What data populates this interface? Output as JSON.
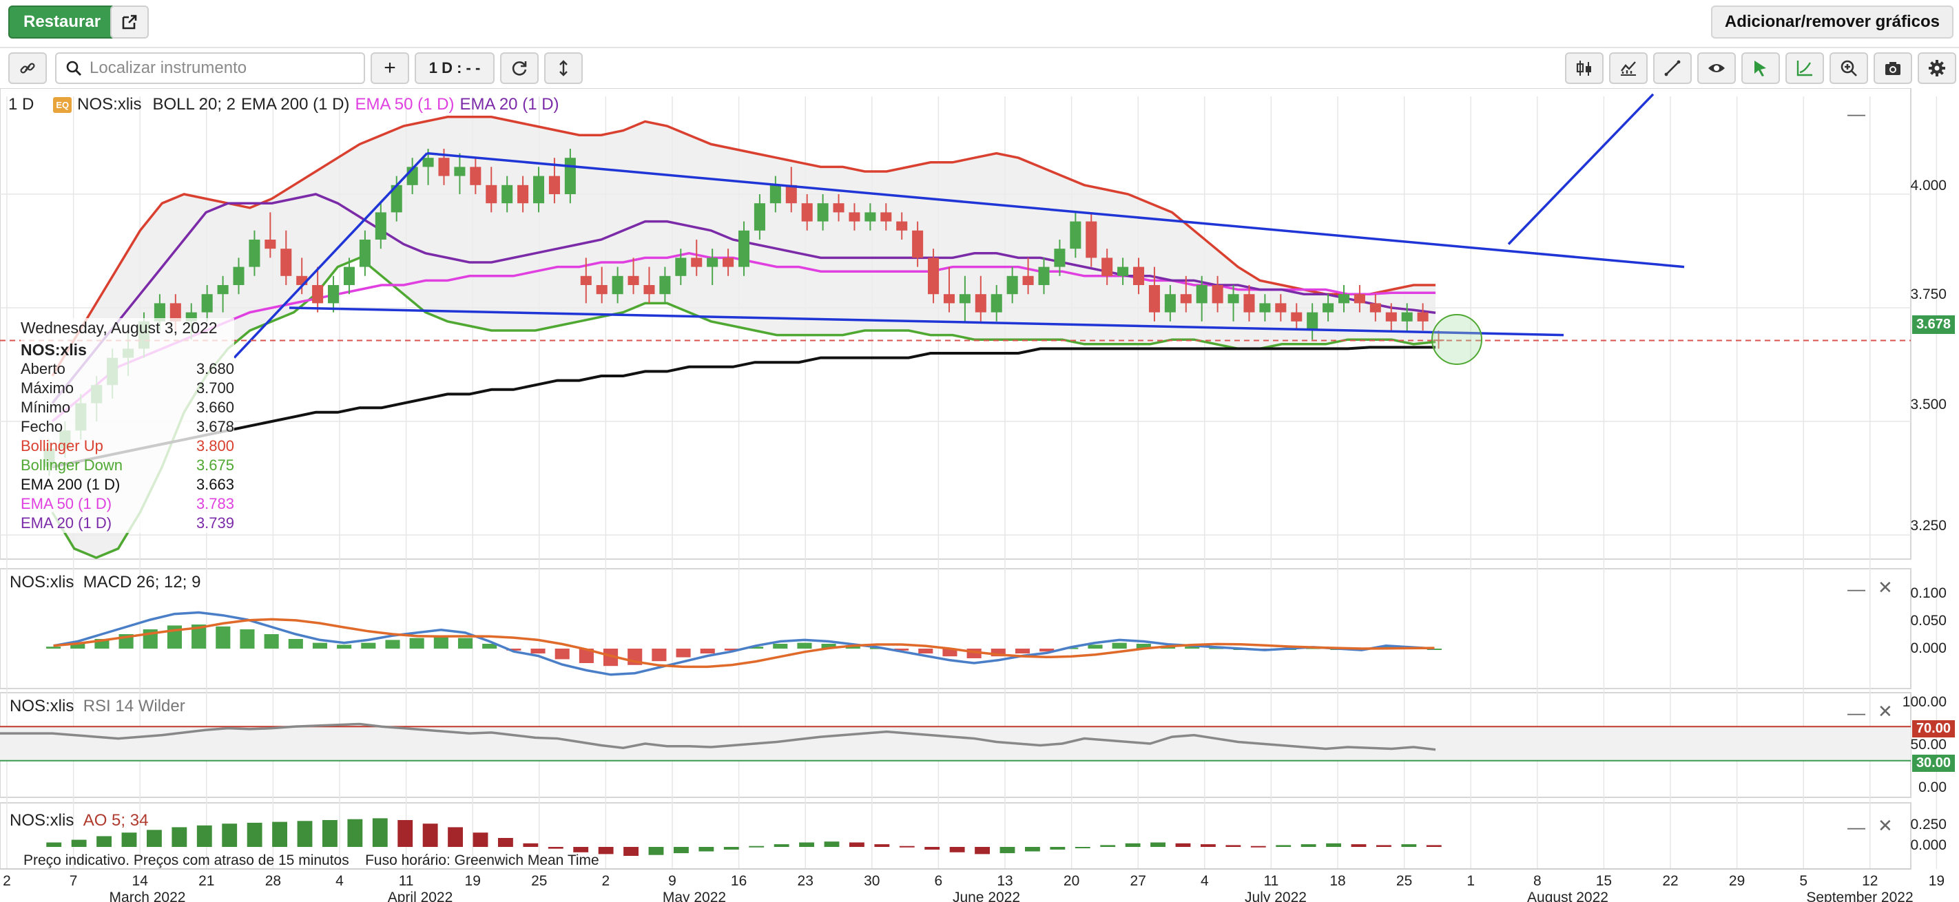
{
  "topbar": {
    "restore_label": "Restaurar",
    "add_remove_label": "Adicionar/remover gráficos"
  },
  "toolbar": {
    "search_placeholder": "Localizar instrumento",
    "add_label": "+",
    "interval_label": "1 D : - -"
  },
  "legend": {
    "interval": "1 D",
    "badge": "EQ",
    "symbol": "NOS:xlis",
    "boll": "BOLL 20; 2",
    "ema200": "EMA 200 (1 D)",
    "ema50": "EMA 50 (1 D)",
    "ema20": "EMA 20 (1 D)"
  },
  "colors": {
    "up": "#4ca64c",
    "down": "#d9534f",
    "boll_up": "#d94030",
    "boll_down": "#4fa832",
    "ema200": "#111111",
    "ema50": "#e040e0",
    "ema20": "#7b2aa8",
    "trend": "#1f35d6",
    "price_badge": "#3a9a4d",
    "rsi_hi": "#c0392b",
    "rsi_lo": "#3a9a4d"
  },
  "tooltip": {
    "date": "Wednesday, August 3, 2022",
    "symbol": "NOS:xlis",
    "rows": [
      {
        "label": "Aberto",
        "value": "3.680",
        "color": "#222"
      },
      {
        "label": "Máximo",
        "value": "3.700",
        "color": "#222"
      },
      {
        "label": "Mínimo",
        "value": "3.660",
        "color": "#222"
      },
      {
        "label": "Fecho",
        "value": "3.678",
        "color": "#222"
      },
      {
        "label": "Bollinger Up",
        "value": "3.800",
        "color": "#d94030"
      },
      {
        "label": "Bollinger Down",
        "value": "3.675",
        "color": "#4fa832"
      },
      {
        "label": "EMA 200 (1 D)",
        "value": "3.663",
        "color": "#111"
      },
      {
        "label": "EMA 50 (1 D)",
        "value": "3.783",
        "color": "#e040e0"
      },
      {
        "label": "EMA 20 (1 D)",
        "value": "3.739",
        "color": "#7b2aa8"
      }
    ]
  },
  "price_axis": {
    "ticks": [
      "4.000",
      "3.750",
      "3.500",
      "3.250"
    ],
    "current": "3.678"
  },
  "macd": {
    "symbol": "NOS:xlis",
    "label": "MACD 26; 12; 9",
    "ticks": [
      "0.100",
      "0.050",
      "0.000"
    ]
  },
  "rsi": {
    "symbol": "NOS:xlis",
    "label": "RSI 14 Wilder",
    "ticks": [
      "100.00",
      "50.00",
      "0.00"
    ],
    "hi": "70.00",
    "lo": "30.00"
  },
  "ao": {
    "symbol": "NOS:xlis",
    "label": "AO 5; 34",
    "ticks": [
      "0.250",
      "0.000"
    ]
  },
  "footer": {
    "note": "Preço indicativo. Preços com atraso de 15 minutos    Fuso horário: Greenwich Mean Time"
  },
  "xaxis": {
    "days": [
      "2",
      "7",
      "14",
      "21",
      "28",
      "4",
      "11",
      "19",
      "25",
      "2",
      "9",
      "16",
      "23",
      "30",
      "6",
      "13",
      "20",
      "27",
      "4",
      "11",
      "18",
      "25",
      "1",
      "8",
      "15",
      "22",
      "29",
      "5",
      "12",
      "19"
    ],
    "months": [
      "March 2022",
      "April 2022",
      "May 2022",
      "June 2022",
      "July 2022",
      "August 2022",
      "September 2022"
    ]
  },
  "chart_data": {
    "type": "candlestick",
    "symbol": "NOS:xlis",
    "interval": "1 D",
    "ylim": [
      3.2,
      4.2
    ],
    "candles": [
      {
        "o": 3.4,
        "h": 3.46,
        "l": 3.38,
        "c": 3.44
      },
      {
        "o": 3.44,
        "h": 3.5,
        "l": 3.42,
        "c": 3.48
      },
      {
        "o": 3.48,
        "h": 3.56,
        "l": 3.46,
        "c": 3.54
      },
      {
        "o": 3.54,
        "h": 3.6,
        "l": 3.5,
        "c": 3.58
      },
      {
        "o": 3.58,
        "h": 3.66,
        "l": 3.55,
        "c": 3.64
      },
      {
        "o": 3.64,
        "h": 3.7,
        "l": 3.6,
        "c": 3.66
      },
      {
        "o": 3.66,
        "h": 3.74,
        "l": 3.64,
        "c": 3.72
      },
      {
        "o": 3.72,
        "h": 3.78,
        "l": 3.7,
        "c": 3.76
      },
      {
        "o": 3.76,
        "h": 3.78,
        "l": 3.7,
        "c": 3.72
      },
      {
        "o": 3.72,
        "h": 3.76,
        "l": 3.68,
        "c": 3.74
      },
      {
        "o": 3.74,
        "h": 3.8,
        "l": 3.72,
        "c": 3.78
      },
      {
        "o": 3.78,
        "h": 3.82,
        "l": 3.74,
        "c": 3.8
      },
      {
        "o": 3.8,
        "h": 3.86,
        "l": 3.78,
        "c": 3.84
      },
      {
        "o": 3.84,
        "h": 3.92,
        "l": 3.82,
        "c": 3.9
      },
      {
        "o": 3.9,
        "h": 3.96,
        "l": 3.86,
        "c": 3.88
      },
      {
        "o": 3.88,
        "h": 3.92,
        "l": 3.8,
        "c": 3.82
      },
      {
        "o": 3.82,
        "h": 3.86,
        "l": 3.78,
        "c": 3.8
      },
      {
        "o": 3.8,
        "h": 3.84,
        "l": 3.74,
        "c": 3.76
      },
      {
        "o": 3.76,
        "h": 3.82,
        "l": 3.74,
        "c": 3.8
      },
      {
        "o": 3.8,
        "h": 3.86,
        "l": 3.78,
        "c": 3.84
      },
      {
        "o": 3.84,
        "h": 3.92,
        "l": 3.82,
        "c": 3.9
      },
      {
        "o": 3.9,
        "h": 3.98,
        "l": 3.88,
        "c": 3.96
      },
      {
        "o": 3.96,
        "h": 4.04,
        "l": 3.94,
        "c": 4.02
      },
      {
        "o": 4.02,
        "h": 4.08,
        "l": 4.0,
        "c": 4.06
      },
      {
        "o": 4.06,
        "h": 4.1,
        "l": 4.02,
        "c": 4.08
      },
      {
        "o": 4.08,
        "h": 4.1,
        "l": 4.02,
        "c": 4.04
      },
      {
        "o": 4.04,
        "h": 4.09,
        "l": 4.0,
        "c": 4.06
      },
      {
        "o": 4.06,
        "h": 4.08,
        "l": 4.0,
        "c": 4.02
      },
      {
        "o": 4.02,
        "h": 4.06,
        "l": 3.96,
        "c": 3.98
      },
      {
        "o": 3.98,
        "h": 4.04,
        "l": 3.96,
        "c": 4.02
      },
      {
        "o": 4.02,
        "h": 4.04,
        "l": 3.96,
        "c": 3.98
      },
      {
        "o": 3.98,
        "h": 4.06,
        "l": 3.96,
        "c": 4.04
      },
      {
        "o": 4.04,
        "h": 4.08,
        "l": 3.98,
        "c": 4.0
      },
      {
        "o": 4.0,
        "h": 4.1,
        "l": 3.98,
        "c": 4.08
      },
      {
        "o": 3.82,
        "h": 3.86,
        "l": 3.76,
        "c": 3.8
      },
      {
        "o": 3.8,
        "h": 3.84,
        "l": 3.76,
        "c": 3.78
      },
      {
        "o": 3.78,
        "h": 3.84,
        "l": 3.76,
        "c": 3.82
      },
      {
        "o": 3.82,
        "h": 3.86,
        "l": 3.78,
        "c": 3.8
      },
      {
        "o": 3.8,
        "h": 3.84,
        "l": 3.76,
        "c": 3.78
      },
      {
        "o": 3.78,
        "h": 3.84,
        "l": 3.76,
        "c": 3.82
      },
      {
        "o": 3.82,
        "h": 3.88,
        "l": 3.8,
        "c": 3.86
      },
      {
        "o": 3.86,
        "h": 3.9,
        "l": 3.82,
        "c": 3.84
      },
      {
        "o": 3.84,
        "h": 3.88,
        "l": 3.8,
        "c": 3.86
      },
      {
        "o": 3.86,
        "h": 3.88,
        "l": 3.82,
        "c": 3.84
      },
      {
        "o": 3.84,
        "h": 3.94,
        "l": 3.82,
        "c": 3.92
      },
      {
        "o": 3.92,
        "h": 4.0,
        "l": 3.9,
        "c": 3.98
      },
      {
        "o": 3.98,
        "h": 4.04,
        "l": 3.96,
        "c": 4.02
      },
      {
        "o": 4.02,
        "h": 4.06,
        "l": 3.96,
        "c": 3.98
      },
      {
        "o": 3.98,
        "h": 4.0,
        "l": 3.92,
        "c": 3.94
      },
      {
        "o": 3.94,
        "h": 4.0,
        "l": 3.92,
        "c": 3.98
      },
      {
        "o": 3.98,
        "h": 4.0,
        "l": 3.94,
        "c": 3.96
      },
      {
        "o": 3.96,
        "h": 3.98,
        "l": 3.92,
        "c": 3.94
      },
      {
        "o": 3.94,
        "h": 3.98,
        "l": 3.92,
        "c": 3.96
      },
      {
        "o": 3.96,
        "h": 3.98,
        "l": 3.92,
        "c": 3.94
      },
      {
        "o": 3.94,
        "h": 3.96,
        "l": 3.9,
        "c": 3.92
      },
      {
        "o": 3.92,
        "h": 3.94,
        "l": 3.84,
        "c": 3.86
      },
      {
        "o": 3.86,
        "h": 3.88,
        "l": 3.76,
        "c": 3.78
      },
      {
        "o": 3.78,
        "h": 3.84,
        "l": 3.74,
        "c": 3.76
      },
      {
        "o": 3.76,
        "h": 3.82,
        "l": 3.72,
        "c": 3.78
      },
      {
        "o": 3.78,
        "h": 3.82,
        "l": 3.72,
        "c": 3.74
      },
      {
        "o": 3.74,
        "h": 3.8,
        "l": 3.72,
        "c": 3.78
      },
      {
        "o": 3.78,
        "h": 3.84,
        "l": 3.76,
        "c": 3.82
      },
      {
        "o": 3.82,
        "h": 3.86,
        "l": 3.78,
        "c": 3.8
      },
      {
        "o": 3.8,
        "h": 3.86,
        "l": 3.78,
        "c": 3.84
      },
      {
        "o": 3.84,
        "h": 3.9,
        "l": 3.82,
        "c": 3.88
      },
      {
        "o": 3.88,
        "h": 3.96,
        "l": 3.86,
        "c": 3.94
      },
      {
        "o": 3.94,
        "h": 3.96,
        "l": 3.84,
        "c": 3.86
      },
      {
        "o": 3.86,
        "h": 3.88,
        "l": 3.8,
        "c": 3.82
      },
      {
        "o": 3.82,
        "h": 3.86,
        "l": 3.8,
        "c": 3.84
      },
      {
        "o": 3.84,
        "h": 3.86,
        "l": 3.78,
        "c": 3.8
      },
      {
        "o": 3.8,
        "h": 3.84,
        "l": 3.72,
        "c": 3.74
      },
      {
        "o": 3.74,
        "h": 3.8,
        "l": 3.72,
        "c": 3.78
      },
      {
        "o": 3.78,
        "h": 3.82,
        "l": 3.74,
        "c": 3.76
      },
      {
        "o": 3.76,
        "h": 3.82,
        "l": 3.72,
        "c": 3.8
      },
      {
        "o": 3.8,
        "h": 3.82,
        "l": 3.74,
        "c": 3.76
      },
      {
        "o": 3.76,
        "h": 3.8,
        "l": 3.72,
        "c": 3.78
      },
      {
        "o": 3.78,
        "h": 3.8,
        "l": 3.72,
        "c": 3.74
      },
      {
        "o": 3.74,
        "h": 3.78,
        "l": 3.72,
        "c": 3.76
      },
      {
        "o": 3.76,
        "h": 3.78,
        "l": 3.72,
        "c": 3.74
      },
      {
        "o": 3.74,
        "h": 3.76,
        "l": 3.7,
        "c": 3.72
      },
      {
        "o": 3.7,
        "h": 3.76,
        "l": 3.68,
        "c": 3.74
      },
      {
        "o": 3.74,
        "h": 3.78,
        "l": 3.72,
        "c": 3.76
      },
      {
        "o": 3.76,
        "h": 3.8,
        "l": 3.74,
        "c": 3.78
      },
      {
        "o": 3.78,
        "h": 3.8,
        "l": 3.74,
        "c": 3.76
      },
      {
        "o": 3.76,
        "h": 3.78,
        "l": 3.72,
        "c": 3.74
      },
      {
        "o": 3.74,
        "h": 3.76,
        "l": 3.7,
        "c": 3.72
      },
      {
        "o": 3.72,
        "h": 3.76,
        "l": 3.7,
        "c": 3.74
      },
      {
        "o": 3.74,
        "h": 3.76,
        "l": 3.7,
        "c": 3.72
      },
      {
        "o": 3.68,
        "h": 3.7,
        "l": 3.66,
        "c": 3.678
      }
    ],
    "indicators": {
      "boll_up": [
        3.6,
        3.68,
        3.76,
        3.84,
        3.92,
        3.98,
        4.0,
        3.99,
        3.98,
        3.97,
        3.99,
        4.02,
        4.05,
        4.08,
        4.11,
        4.13,
        4.15,
        4.16,
        4.17,
        4.17,
        4.17,
        4.16,
        4.15,
        4.14,
        4.13,
        4.13,
        4.14,
        4.16,
        4.15,
        4.13,
        4.11,
        4.1,
        4.09,
        4.08,
        4.07,
        4.06,
        4.06,
        4.05,
        4.05,
        4.06,
        4.07,
        4.07,
        4.08,
        4.09,
        4.08,
        4.06,
        4.04,
        4.02,
        4.01,
        4.0,
        3.98,
        3.96,
        3.92,
        3.88,
        3.84,
        3.81,
        3.8,
        3.79,
        3.78,
        3.78,
        3.78,
        3.79,
        3.8,
        3.8
      ],
      "boll_down": [
        3.3,
        3.22,
        3.2,
        3.22,
        3.3,
        3.4,
        3.52,
        3.6,
        3.66,
        3.7,
        3.72,
        3.74,
        3.78,
        3.84,
        3.86,
        3.82,
        3.78,
        3.74,
        3.72,
        3.71,
        3.7,
        3.7,
        3.7,
        3.71,
        3.72,
        3.73,
        3.74,
        3.76,
        3.76,
        3.74,
        3.72,
        3.71,
        3.7,
        3.69,
        3.69,
        3.69,
        3.69,
        3.7,
        3.7,
        3.7,
        3.69,
        3.69,
        3.68,
        3.68,
        3.68,
        3.68,
        3.68,
        3.67,
        3.67,
        3.67,
        3.67,
        3.68,
        3.68,
        3.67,
        3.66,
        3.66,
        3.67,
        3.67,
        3.67,
        3.68,
        3.68,
        3.68,
        3.67,
        3.675
      ],
      "ema200": [
        3.4,
        3.41,
        3.42,
        3.43,
        3.44,
        3.45,
        3.46,
        3.47,
        3.48,
        3.49,
        3.5,
        3.51,
        3.52,
        3.52,
        3.53,
        3.53,
        3.54,
        3.55,
        3.56,
        3.56,
        3.57,
        3.57,
        3.58,
        3.59,
        3.59,
        3.6,
        3.6,
        3.61,
        3.61,
        3.62,
        3.62,
        3.62,
        3.63,
        3.63,
        3.63,
        3.64,
        3.64,
        3.64,
        3.64,
        3.64,
        3.65,
        3.65,
        3.65,
        3.65,
        3.65,
        3.66,
        3.66,
        3.66,
        3.66,
        3.66,
        3.66,
        3.66,
        3.66,
        3.66,
        3.66,
        3.66,
        3.66,
        3.66,
        3.66,
        3.66,
        3.663,
        3.663,
        3.663,
        3.663
      ],
      "ema50": [
        3.5,
        3.54,
        3.58,
        3.62,
        3.64,
        3.66,
        3.68,
        3.7,
        3.72,
        3.74,
        3.75,
        3.76,
        3.77,
        3.78,
        3.79,
        3.8,
        3.8,
        3.81,
        3.81,
        3.82,
        3.82,
        3.82,
        3.83,
        3.84,
        3.84,
        3.85,
        3.85,
        3.86,
        3.86,
        3.87,
        3.86,
        3.86,
        3.85,
        3.84,
        3.84,
        3.83,
        3.83,
        3.83,
        3.83,
        3.83,
        3.83,
        3.84,
        3.84,
        3.84,
        3.84,
        3.83,
        3.83,
        3.82,
        3.82,
        3.82,
        3.81,
        3.81,
        3.8,
        3.8,
        3.79,
        3.79,
        3.79,
        3.79,
        3.79,
        3.78,
        3.78,
        3.783,
        3.783,
        3.783
      ],
      "ema20": [
        3.54,
        3.6,
        3.66,
        3.72,
        3.78,
        3.84,
        3.9,
        3.96,
        3.98,
        3.98,
        3.98,
        3.99,
        4.0,
        3.98,
        3.95,
        3.92,
        3.89,
        3.87,
        3.86,
        3.85,
        3.85,
        3.86,
        3.87,
        3.88,
        3.89,
        3.9,
        3.92,
        3.94,
        3.94,
        3.93,
        3.92,
        3.9,
        3.89,
        3.88,
        3.87,
        3.86,
        3.86,
        3.86,
        3.86,
        3.86,
        3.86,
        3.86,
        3.87,
        3.87,
        3.86,
        3.86,
        3.85,
        3.84,
        3.83,
        3.82,
        3.82,
        3.81,
        3.81,
        3.8,
        3.8,
        3.79,
        3.79,
        3.78,
        3.78,
        3.77,
        3.76,
        3.75,
        3.745,
        3.739
      ]
    },
    "trendlines_note": "three blue hand-drawn trendlines",
    "macd_hist": [
      0.004,
      0.01,
      0.02,
      0.03,
      0.04,
      0.048,
      0.05,
      0.046,
      0.04,
      0.03,
      0.02,
      0.012,
      0.008,
      0.012,
      0.018,
      0.022,
      0.026,
      0.022,
      0.01,
      -0.004,
      -0.01,
      -0.022,
      -0.03,
      -0.036,
      -0.034,
      -0.026,
      -0.018,
      -0.01,
      -0.004,
      0.004,
      0.01,
      0.012,
      0.01,
      0.006,
      0.002,
      -0.004,
      -0.01,
      -0.016,
      -0.02,
      -0.016,
      -0.01,
      -0.006,
      0.002,
      0.008,
      0.012,
      0.01,
      0.006,
      0.004,
      0.002,
      0.0,
      -0.002,
      0.0,
      0.002,
      0.0,
      -0.002,
      0.004,
      0.002,
      0.0
    ],
    "rsi": [
      62,
      60,
      58,
      56,
      58,
      60,
      63,
      66,
      68,
      67,
      68,
      70,
      71,
      72,
      73,
      70,
      68,
      66,
      64,
      62,
      63,
      60,
      57,
      56,
      52,
      48,
      45,
      50,
      47,
      47,
      46,
      48,
      50,
      52,
      55,
      58,
      60,
      62,
      64,
      62,
      60,
      58,
      56,
      52,
      50,
      48,
      50,
      56,
      54,
      52,
      50,
      58,
      60,
      56,
      52,
      50,
      48,
      46,
      44,
      46,
      45,
      44,
      46,
      43
    ],
    "ao": [
      0.05,
      0.08,
      0.12,
      0.16,
      0.19,
      0.22,
      0.24,
      0.26,
      0.27,
      0.28,
      0.29,
      0.3,
      0.31,
      0.32,
      0.3,
      0.26,
      0.22,
      0.16,
      0.1,
      0.04,
      -0.02,
      -0.06,
      -0.08,
      -0.1,
      -0.09,
      -0.07,
      -0.05,
      -0.03,
      0.01,
      0.03,
      0.05,
      0.06,
      0.05,
      0.03,
      0.01,
      -0.03,
      -0.06,
      -0.08,
      -0.07,
      -0.05,
      -0.03,
      -0.01,
      0.02,
      0.04,
      0.05,
      0.04,
      0.03,
      0.02,
      0.01,
      0.02,
      0.03,
      0.04,
      0.03,
      0.02,
      0.03,
      0.02
    ]
  }
}
